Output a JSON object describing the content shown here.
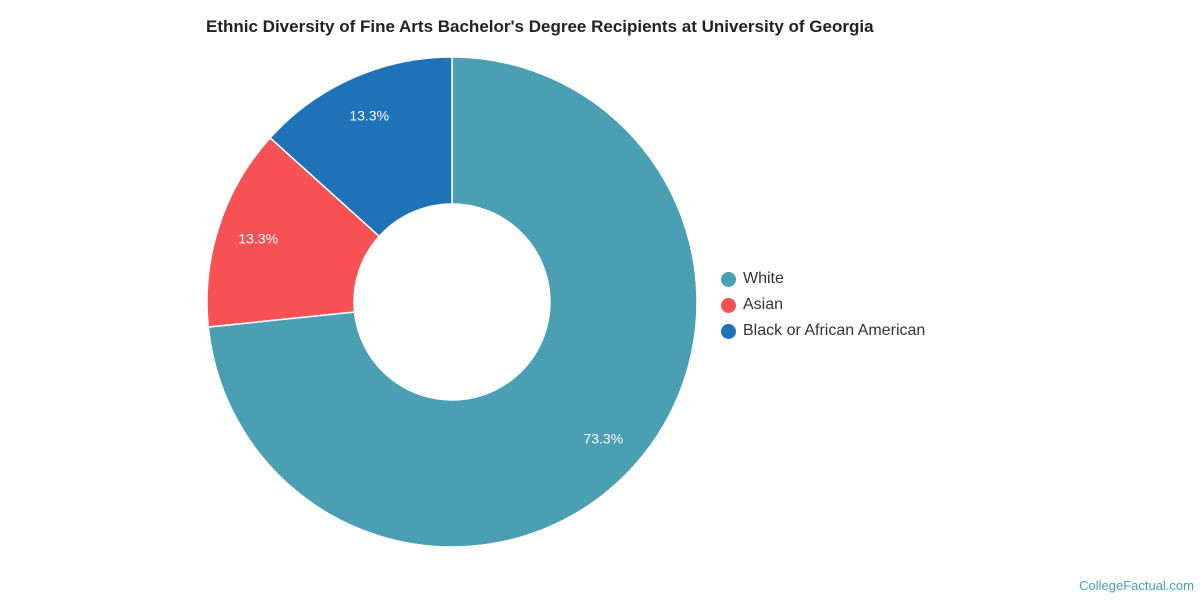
{
  "chart_data": {
    "type": "pie",
    "title": "Ethnic Diversity of Fine Arts Bachelor's Degree Recipients at University of Georgia",
    "donut": true,
    "legend_position": "right",
    "slices": [
      {
        "name": "White",
        "value": 73.3,
        "label": "73.3%",
        "color": "#4a9fb2"
      },
      {
        "name": "Asian",
        "value": 13.3,
        "label": "13.3%",
        "color": "#f95254"
      },
      {
        "name": "Black or African American",
        "value": 13.3,
        "label": "13.3%",
        "color": "#1f72b8"
      }
    ]
  },
  "credit": "CollegeFactual.com"
}
